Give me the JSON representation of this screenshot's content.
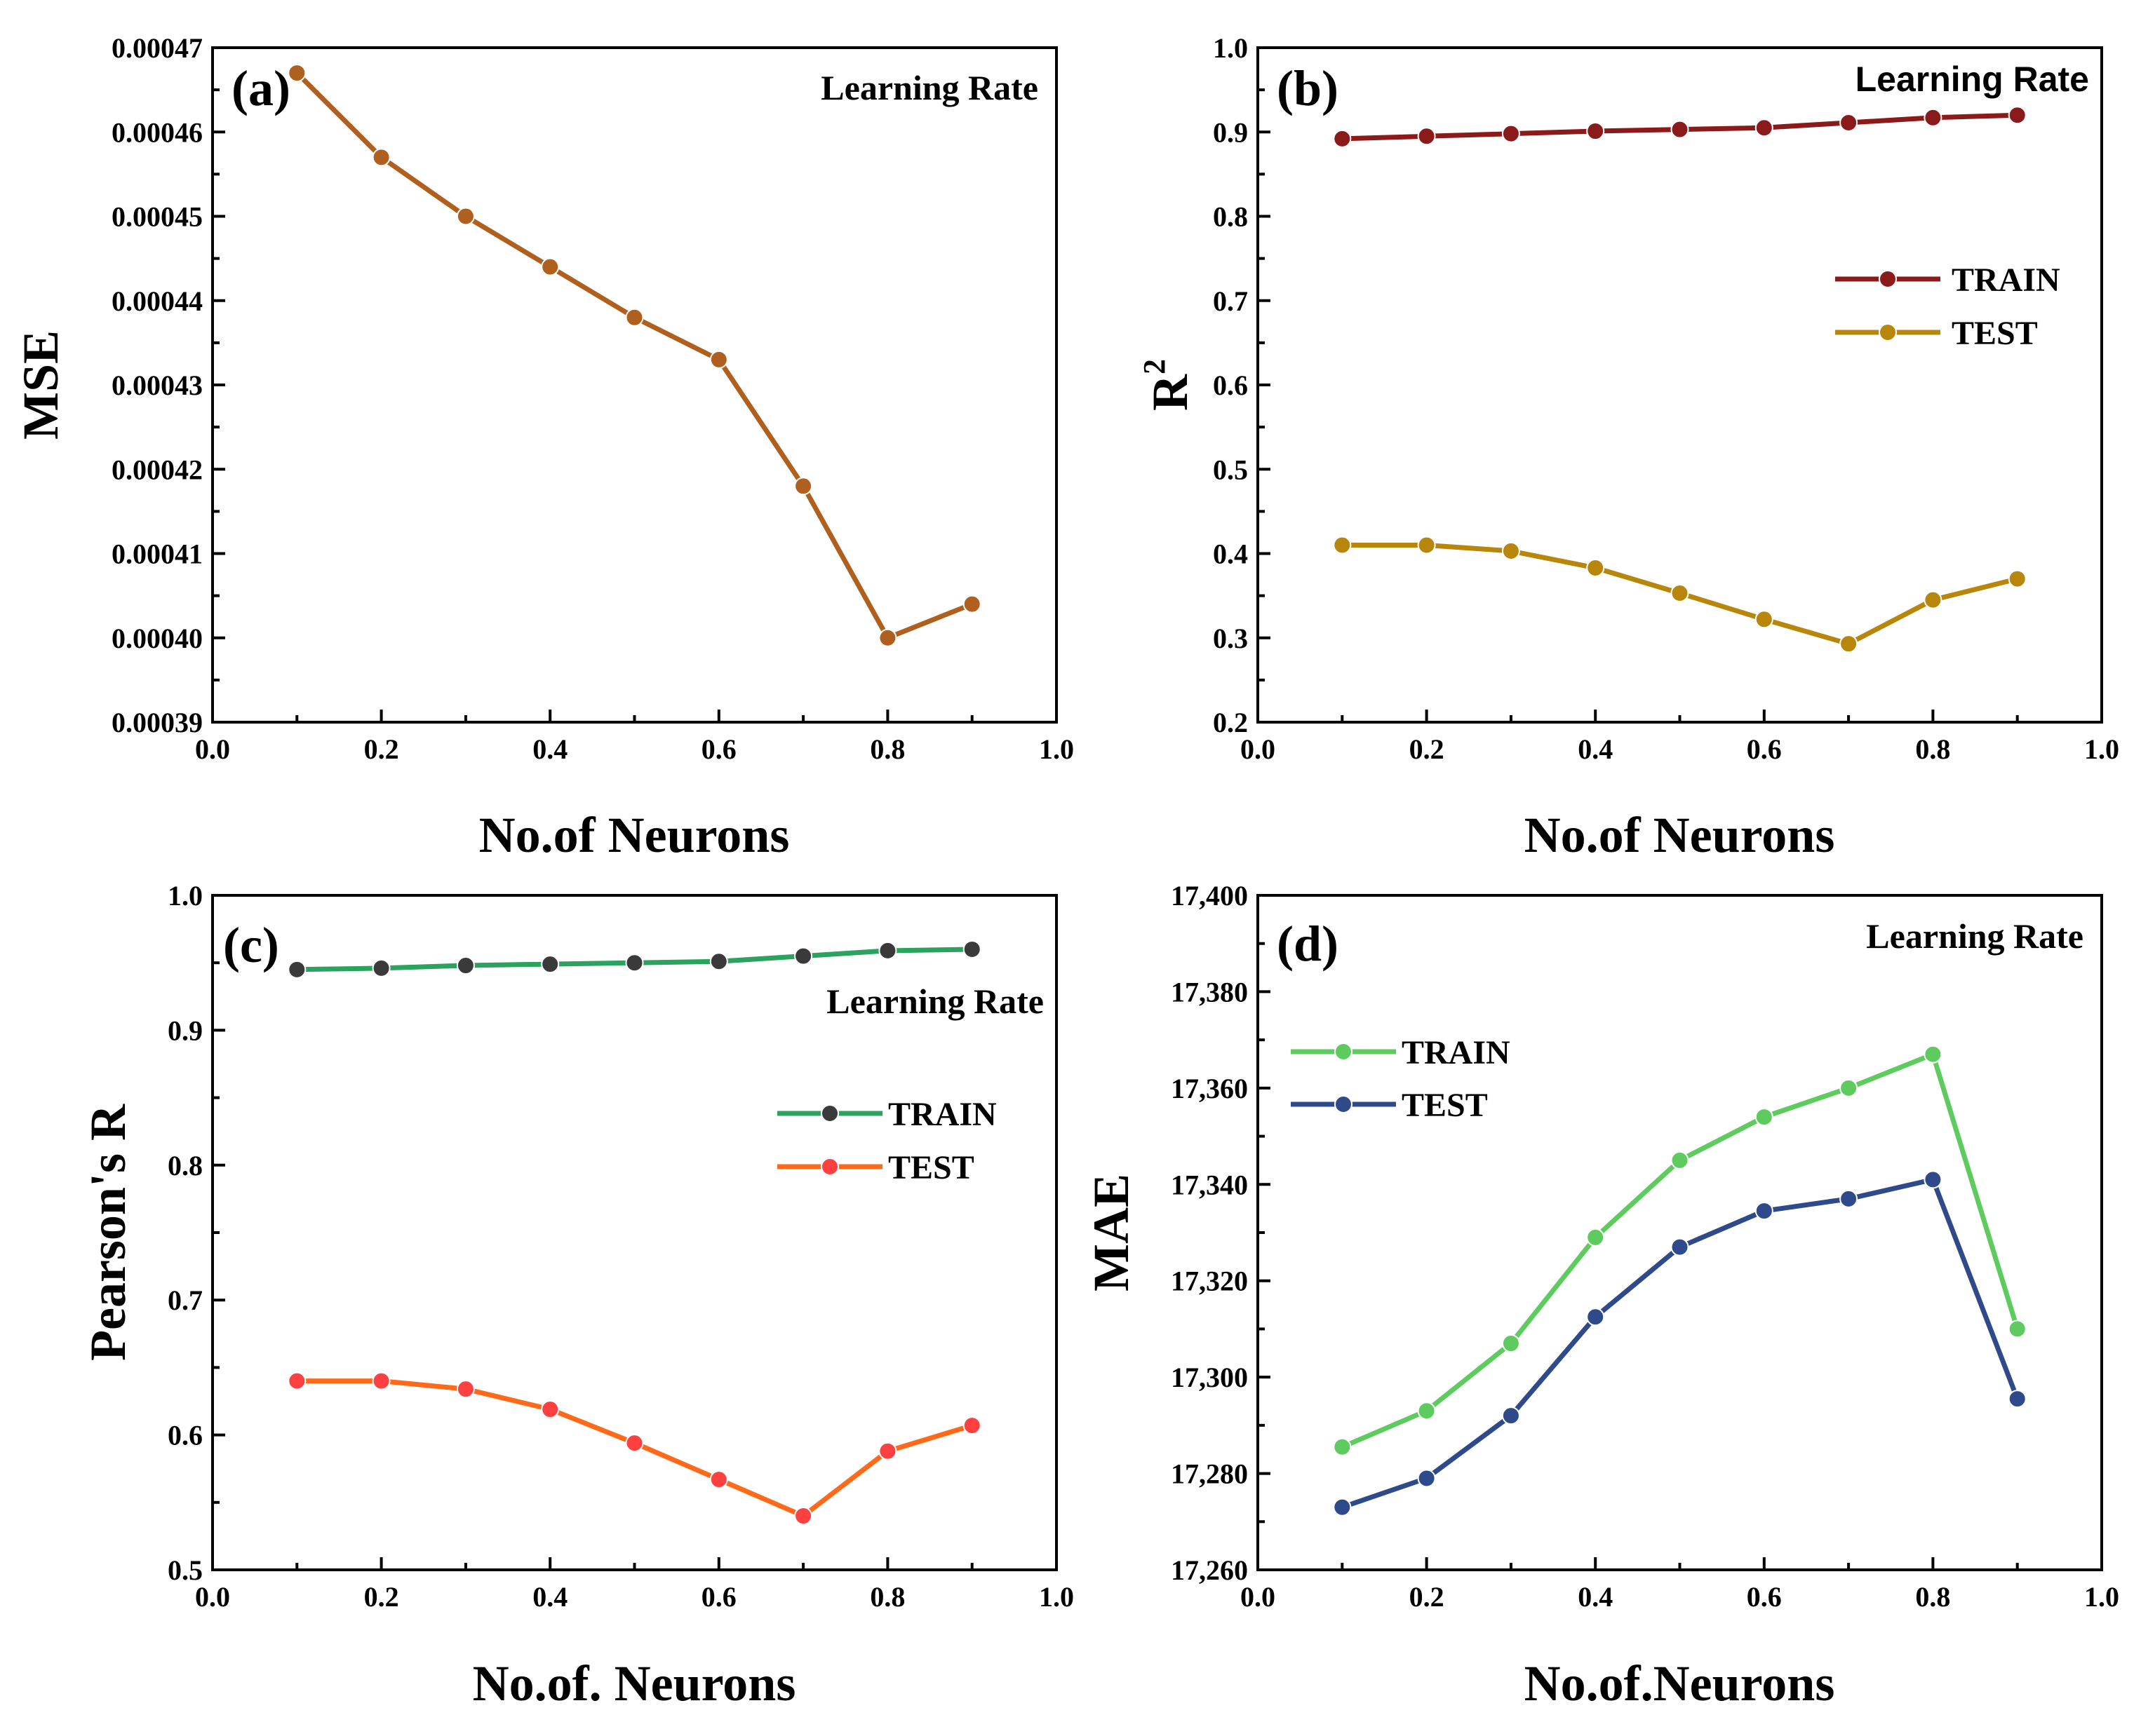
{
  "chart_data": [
    {
      "type": "line",
      "panel": "(a)",
      "annotation": "Learning Rate",
      "xlabel": "No.of Neurons",
      "ylabel": "MSE",
      "xlim": [
        0.0,
        1.0
      ],
      "ylim": [
        0.00039,
        0.00047
      ],
      "xticks": [
        0.0,
        0.2,
        0.4,
        0.6,
        0.8,
        1.0
      ],
      "xtick_labels": [
        "0.0",
        "0.2",
        "0.4",
        "0.6",
        "0.8",
        "1.0"
      ],
      "yticks": [
        0.00039,
        0.0004,
        0.00041,
        0.00042,
        0.00043,
        0.00044,
        0.00045,
        0.00046,
        0.00047
      ],
      "ytick_labels": [
        "0.00039",
        "0.00040",
        "0.00041",
        "0.00042",
        "0.00043",
        "0.00044",
        "0.00045",
        "0.00046",
        "0.00047"
      ],
      "x": [
        0.1,
        0.2,
        0.3,
        0.4,
        0.5,
        0.6,
        0.7,
        0.8,
        0.9
      ],
      "series": [
        {
          "name": "MSE",
          "color": "#b0601e",
          "values": [
            0.000467,
            0.000457,
            0.00045,
            0.000444,
            0.000438,
            0.000433,
            0.000418,
            0.0004,
            0.000404
          ]
        }
      ],
      "legend": []
    },
    {
      "type": "line",
      "panel": "(b)",
      "annotation": "Learning Rate",
      "xlabel": "No.of Neurons",
      "ylabel": "R",
      "ylabel_sup": "2",
      "xlim": [
        0.0,
        1.0
      ],
      "ylim": [
        0.2,
        1.0
      ],
      "xticks": [
        0.0,
        0.2,
        0.4,
        0.6,
        0.8,
        1.0
      ],
      "xtick_labels": [
        "0.0",
        "0.2",
        "0.4",
        "0.6",
        "0.8",
        "1.0"
      ],
      "yticks": [
        0.2,
        0.3,
        0.4,
        0.5,
        0.6,
        0.7,
        0.8,
        0.9,
        1.0
      ],
      "ytick_labels": [
        "0.2",
        "0.3",
        "0.4",
        "0.5",
        "0.6",
        "0.7",
        "0.8",
        "0.9",
        "1.0"
      ],
      "x": [
        0.1,
        0.2,
        0.3,
        0.4,
        0.5,
        0.6,
        0.7,
        0.8,
        0.9
      ],
      "series": [
        {
          "name": "TRAIN",
          "color": "#8b1a1a",
          "values": [
            0.892,
            0.895,
            0.898,
            0.901,
            0.903,
            0.905,
            0.911,
            0.917,
            0.92
          ]
        },
        {
          "name": "TEST",
          "color": "#b8860b",
          "values": [
            0.41,
            0.41,
            0.403,
            0.383,
            0.353,
            0.322,
            0.293,
            0.345,
            0.37
          ]
        }
      ],
      "legend": [
        "TRAIN",
        "TEST"
      ]
    },
    {
      "type": "line",
      "panel": "(c)",
      "annotation": "Learning Rate",
      "xlabel": "No.of. Neurons",
      "ylabel": "Pearson's R",
      "xlim": [
        0.0,
        1.0
      ],
      "ylim": [
        0.5,
        1.0
      ],
      "xticks": [
        0.0,
        0.2,
        0.4,
        0.6,
        0.8,
        1.0
      ],
      "xtick_labels": [
        "0.0",
        "0.2",
        "0.4",
        "0.6",
        "0.8",
        "1.0"
      ],
      "yticks": [
        0.5,
        0.6,
        0.7,
        0.8,
        0.9,
        1.0
      ],
      "ytick_labels": [
        "0.5",
        "0.6",
        "0.7",
        "0.8",
        "0.9",
        "1.0"
      ],
      "x": [
        0.1,
        0.2,
        0.3,
        0.4,
        0.5,
        0.6,
        0.7,
        0.8,
        0.9
      ],
      "series": [
        {
          "name": "TRAIN",
          "color": "#2ca25f",
          "marker_color": "#3a3a3a",
          "values": [
            0.945,
            0.946,
            0.948,
            0.949,
            0.95,
            0.951,
            0.955,
            0.959,
            0.96
          ]
        },
        {
          "name": "TEST",
          "color": "#ff6a1a",
          "marker_color": "#ff4040",
          "values": [
            0.64,
            0.64,
            0.634,
            0.619,
            0.594,
            0.567,
            0.54,
            0.588,
            0.607
          ]
        }
      ],
      "legend": [
        "TRAIN",
        "TEST"
      ]
    },
    {
      "type": "line",
      "panel": "(d)",
      "annotation": "Learning Rate",
      "xlabel": "No.of.Neurons",
      "ylabel": "MAE",
      "xlim": [
        0.0,
        1.0
      ],
      "ylim": [
        17260,
        17400
      ],
      "xticks": [
        0.0,
        0.2,
        0.4,
        0.6,
        0.8,
        1.0
      ],
      "xtick_labels": [
        "0.0",
        "0.2",
        "0.4",
        "0.6",
        "0.8",
        "1.0"
      ],
      "yticks": [
        17260,
        17280,
        17300,
        17320,
        17340,
        17360,
        17380,
        17400
      ],
      "ytick_labels": [
        "17,260",
        "17,280",
        "17,300",
        "17,320",
        "17,340",
        "17,360",
        "17,380",
        "17,400"
      ],
      "x": [
        0.1,
        0.2,
        0.3,
        0.4,
        0.5,
        0.6,
        0.7,
        0.8,
        0.9
      ],
      "series": [
        {
          "name": "TRAIN",
          "color": "#5ecb5e",
          "values": [
            17285.5,
            17293,
            17307,
            17329,
            17345,
            17354,
            17360,
            17367,
            17310
          ]
        },
        {
          "name": "TEST",
          "color": "#2e4a8a",
          "values": [
            17273,
            17279,
            17292,
            17312.5,
            17327,
            17334.5,
            17337,
            17341,
            17295.5
          ]
        }
      ],
      "legend": [
        "TRAIN",
        "TEST"
      ]
    }
  ]
}
